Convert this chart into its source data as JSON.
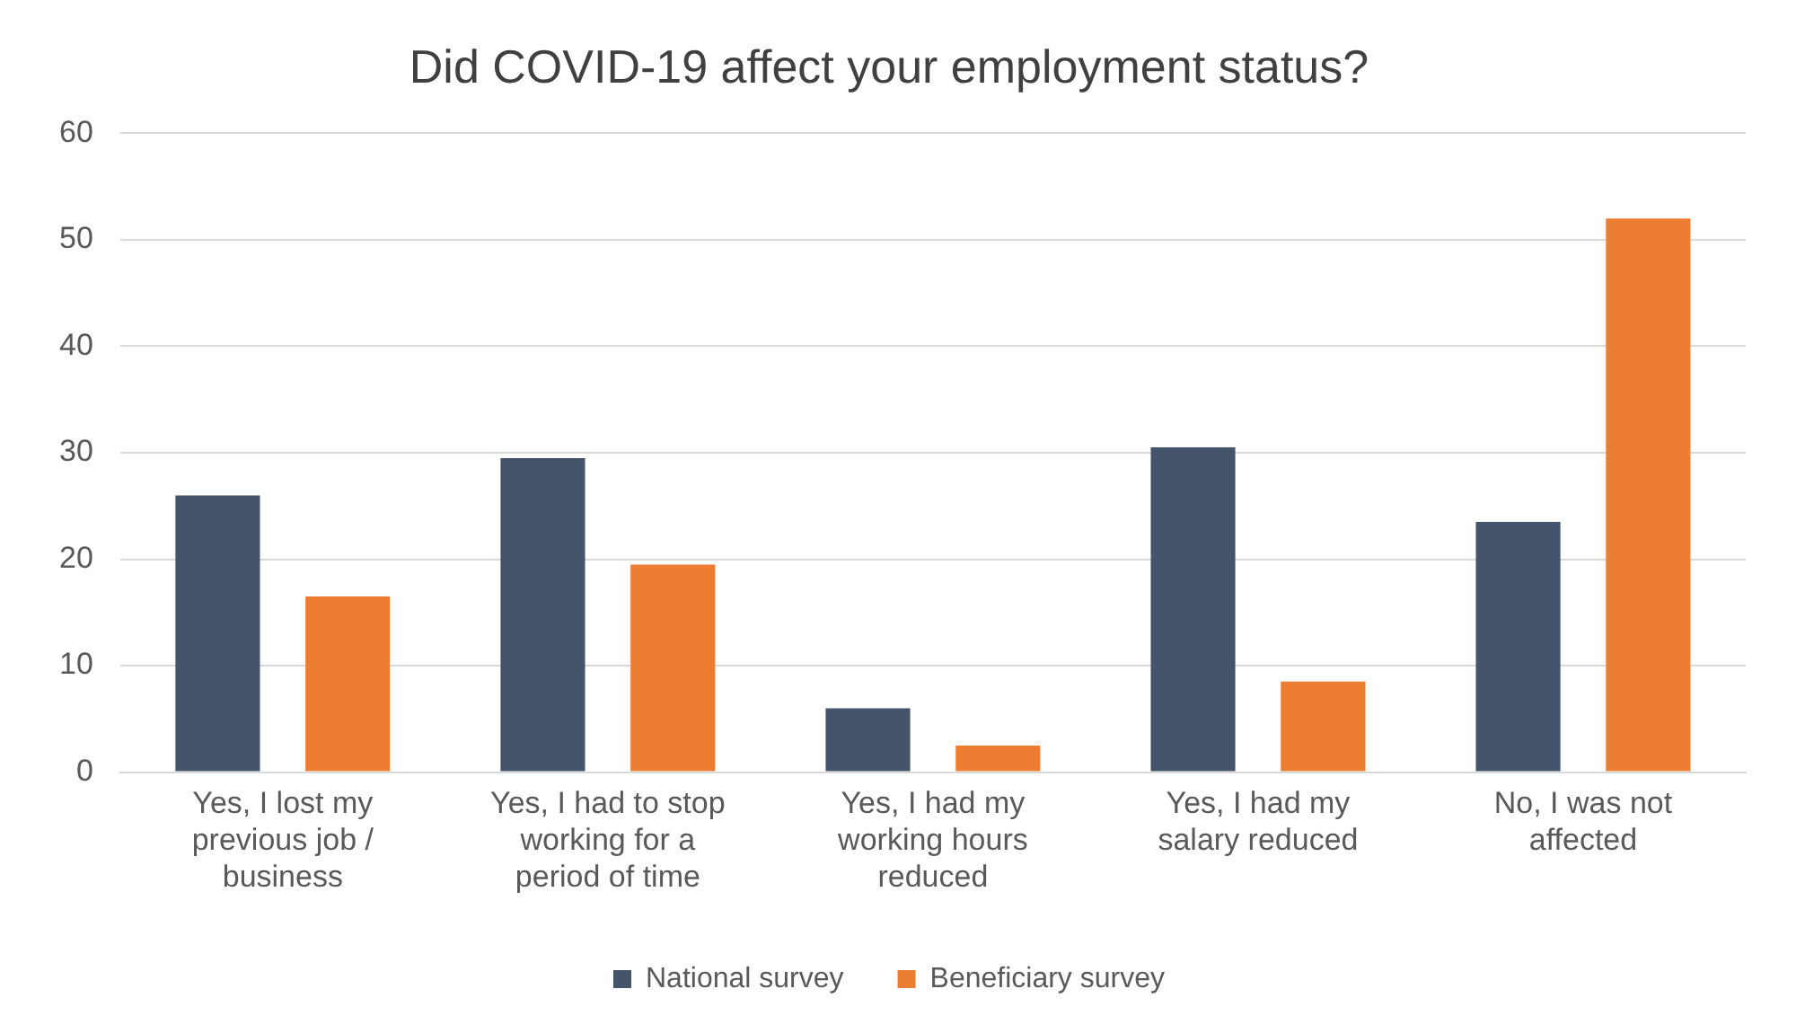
{
  "chart_data": {
    "type": "bar",
    "title": "Did COVID-19 affect your employment status?",
    "categories": [
      "Yes, I lost my previous job / business",
      "Yes, I had to stop working for a period of time",
      "Yes, I had my working hours reduced",
      "Yes, I had my salary reduced",
      "No, I was not affected"
    ],
    "series": [
      {
        "name": "National survey",
        "color": "#44546a",
        "values": [
          26,
          29.5,
          6,
          30.5,
          23.5
        ]
      },
      {
        "name": "Beneficiary survey",
        "color": "#ed7d31",
        "values": [
          16.5,
          19.5,
          2.5,
          8.5,
          52
        ]
      }
    ],
    "ylim": [
      0,
      60
    ],
    "yticks": [
      0,
      10,
      20,
      30,
      40,
      50,
      60
    ],
    "grid": "y",
    "legend": "bottom"
  }
}
